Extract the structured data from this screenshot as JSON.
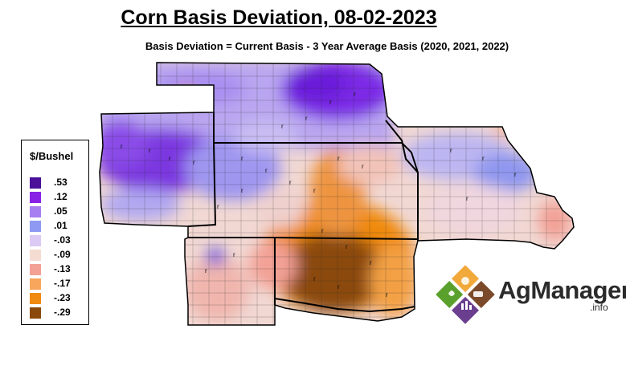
{
  "header": {
    "title": "Corn Basis Deviation, 08-02-2023",
    "subtitle": "Basis Deviation = Current Basis - 3 Year Average Basis (2020, 2021, 2022)"
  },
  "legend": {
    "title": "$/Bushel",
    "items": [
      {
        "label": ".53",
        "color": "#4b0f9a"
      },
      {
        "label": ".12",
        "color": "#8a22e6"
      },
      {
        "label": ".05",
        "color": "#a77ff0"
      },
      {
        "label": ".01",
        "color": "#8e99f2"
      },
      {
        "label": "-.03",
        "color": "#dcc9f4"
      },
      {
        "label": "-.09",
        "color": "#f4dcd2"
      },
      {
        "label": "-.13",
        "color": "#f3a095"
      },
      {
        "label": "-.17",
        "color": "#f7a65c"
      },
      {
        "label": "-.23",
        "color": "#f08a10"
      },
      {
        "label": "-.29",
        "color": "#8b4a0c"
      }
    ]
  },
  "logo": {
    "name": "AgManager",
    "suffix": ".info"
  }
}
